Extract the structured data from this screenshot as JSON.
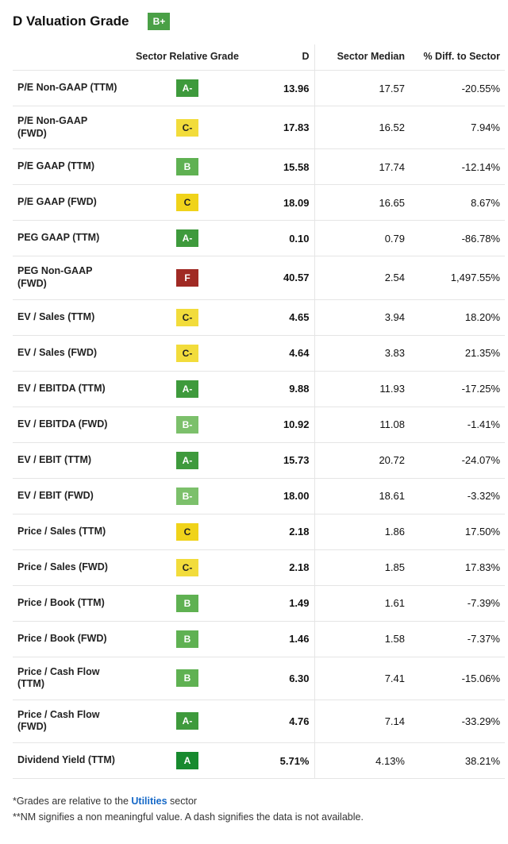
{
  "header": {
    "title": "D Valuation Grade",
    "overall_grade": "B+"
  },
  "columns": {
    "metric": "",
    "grade": "Sector Relative Grade",
    "d": "D",
    "median": "Sector Median",
    "diff": "% Diff. to Sector"
  },
  "grade_colors": {
    "A": "#178a2e",
    "A-": "#3e9a3c",
    "B+": "#4aa046",
    "B": "#5fb152",
    "B-": "#7cc06b",
    "C": "#f0d31a",
    "C-": "#f2dc3b",
    "F": "#a02a24"
  },
  "rows": [
    {
      "metric": "P/E Non-GAAP (TTM)",
      "grade": "A-",
      "d": "13.96",
      "median": "17.57",
      "diff": "-20.55%"
    },
    {
      "metric": "P/E Non-GAAP (FWD)",
      "grade": "C-",
      "d": "17.83",
      "median": "16.52",
      "diff": "7.94%"
    },
    {
      "metric": "P/E GAAP (TTM)",
      "grade": "B",
      "d": "15.58",
      "median": "17.74",
      "diff": "-12.14%"
    },
    {
      "metric": "P/E GAAP (FWD)",
      "grade": "C",
      "d": "18.09",
      "median": "16.65",
      "diff": "8.67%"
    },
    {
      "metric": "PEG GAAP (TTM)",
      "grade": "A-",
      "d": "0.10",
      "median": "0.79",
      "diff": "-86.78%"
    },
    {
      "metric": "PEG Non-GAAP (FWD)",
      "grade": "F",
      "d": "40.57",
      "median": "2.54",
      "diff": "1,497.55%"
    },
    {
      "metric": "EV / Sales (TTM)",
      "grade": "C-",
      "d": "4.65",
      "median": "3.94",
      "diff": "18.20%"
    },
    {
      "metric": "EV / Sales (FWD)",
      "grade": "C-",
      "d": "4.64",
      "median": "3.83",
      "diff": "21.35%"
    },
    {
      "metric": "EV / EBITDA (TTM)",
      "grade": "A-",
      "d": "9.88",
      "median": "11.93",
      "diff": "-17.25%"
    },
    {
      "metric": "EV / EBITDA (FWD)",
      "grade": "B-",
      "d": "10.92",
      "median": "11.08",
      "diff": "-1.41%"
    },
    {
      "metric": "EV / EBIT (TTM)",
      "grade": "A-",
      "d": "15.73",
      "median": "20.72",
      "diff": "-24.07%"
    },
    {
      "metric": "EV / EBIT (FWD)",
      "grade": "B-",
      "d": "18.00",
      "median": "18.61",
      "diff": "-3.32%"
    },
    {
      "metric": "Price / Sales (TTM)",
      "grade": "C",
      "d": "2.18",
      "median": "1.86",
      "diff": "17.50%"
    },
    {
      "metric": "Price / Sales (FWD)",
      "grade": "C-",
      "d": "2.18",
      "median": "1.85",
      "diff": "17.83%"
    },
    {
      "metric": "Price / Book (TTM)",
      "grade": "B",
      "d": "1.49",
      "median": "1.61",
      "diff": "-7.39%"
    },
    {
      "metric": "Price / Book (FWD)",
      "grade": "B",
      "d": "1.46",
      "median": "1.58",
      "diff": "-7.37%"
    },
    {
      "metric": "Price / Cash Flow (TTM)",
      "grade": "B",
      "d": "6.30",
      "median": "7.41",
      "diff": "-15.06%"
    },
    {
      "metric": "Price / Cash Flow (FWD)",
      "grade": "A-",
      "d": "4.76",
      "median": "7.14",
      "diff": "-33.29%"
    },
    {
      "metric": "Dividend Yield (TTM)",
      "grade": "A",
      "d": "5.71%",
      "median": "4.13%",
      "diff": "38.21%"
    }
  ],
  "footnotes": {
    "line1_pre": "*Grades are relative to the ",
    "line1_link": "Utilities",
    "line1_post": " sector",
    "line2": "**NM signifies a non meaningful value. A dash signifies the data is not available."
  }
}
